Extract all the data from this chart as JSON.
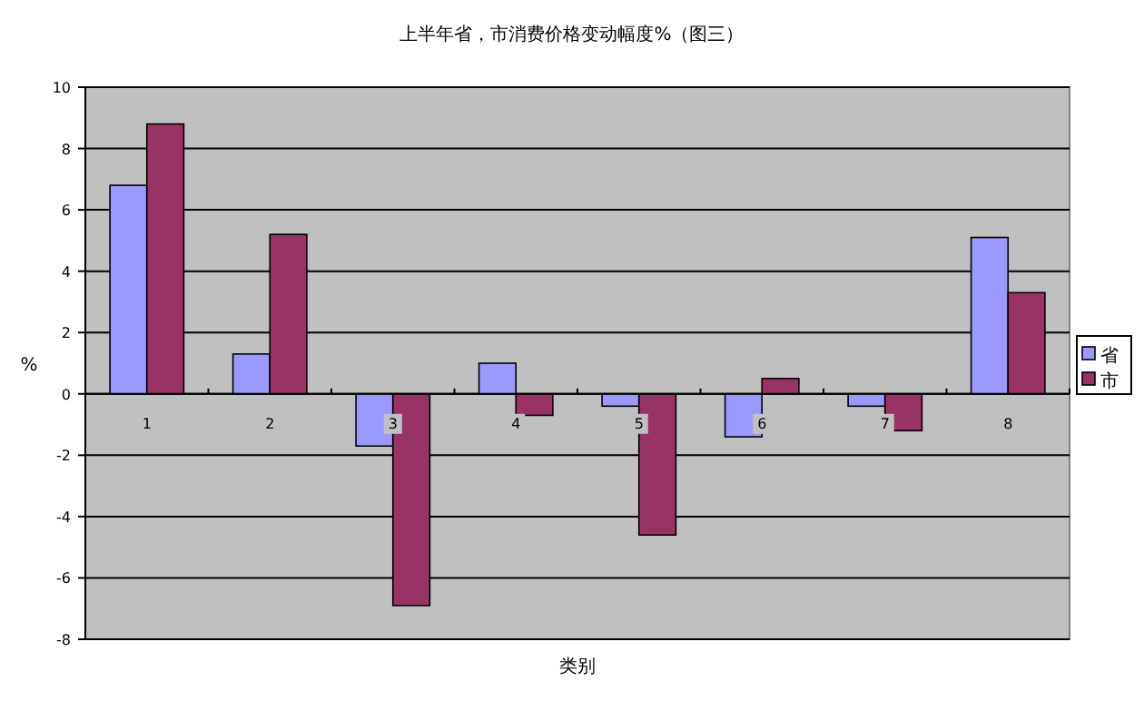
{
  "chart_data": {
    "type": "bar",
    "title": "上半年省，市消费价格变动幅度%（图三）",
    "xlabel": "类别",
    "ylabel": "%",
    "categories": [
      "1",
      "2",
      "3",
      "4",
      "5",
      "6",
      "7",
      "8"
    ],
    "series": [
      {
        "name": "省",
        "color": "#9999ff",
        "values": [
          6.8,
          1.3,
          -1.7,
          1.0,
          -0.4,
          -1.4,
          -0.4,
          5.1
        ]
      },
      {
        "name": "市",
        "color": "#993366",
        "values": [
          8.8,
          5.2,
          -6.9,
          -0.7,
          -4.6,
          0.5,
          -1.2,
          3.3
        ]
      }
    ],
    "ylim": [
      -8,
      10
    ],
    "yticks": [
      -8,
      -6,
      -4,
      -2,
      0,
      2,
      4,
      6,
      8,
      10
    ],
    "grid": "y",
    "legend": "right"
  }
}
